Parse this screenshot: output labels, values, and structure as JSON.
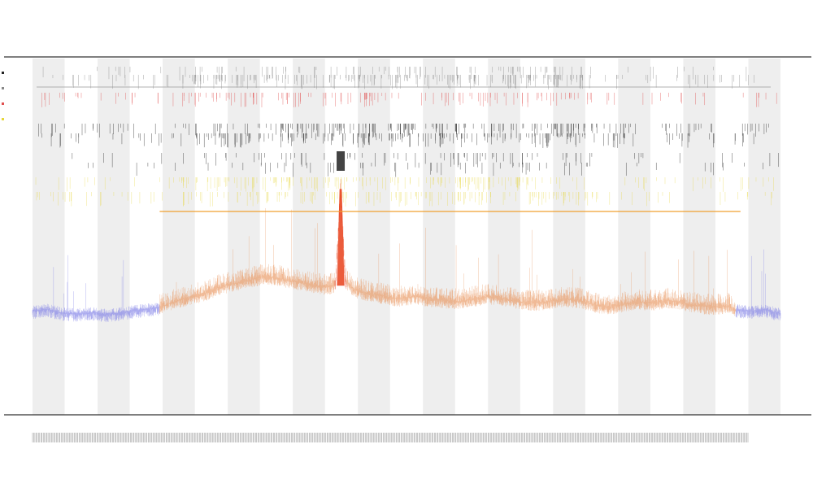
{
  "header": {
    "title": "",
    "subtitle_1": "",
    "subtitle_2": ""
  },
  "chart_data": {
    "type": "line",
    "title": "",
    "xlabel": "",
    "ylabel": "",
    "grid": false,
    "legend_placement": "top-left",
    "colors": {
      "band": "#eeeeee",
      "low_signal": "#7b7be6",
      "mid_signal": "#e8935a",
      "high_signal": "#e8401a",
      "hline": "#f0a030",
      "raster_gray": "#888888",
      "raster_red": "#e05050",
      "raster_black": "#222222",
      "raster_yellow": "#e6d63a",
      "axis": "#333333"
    },
    "legend": [
      {
        "label": "",
        "color": "#222222"
      },
      {
        "label": "",
        "color": "#888888"
      },
      {
        "label": "",
        "color": "#e05050"
      },
      {
        "label": "",
        "color": "#e6d63a"
      }
    ],
    "profile": {
      "x_range": [
        0,
        100
      ],
      "y_range": [
        0,
        100
      ],
      "signal_points": [
        [
          0,
          26.5
        ],
        [
          2,
          27.2
        ],
        [
          4,
          25.8
        ],
        [
          6,
          25.5
        ],
        [
          8,
          26.0
        ],
        [
          10,
          25.2
        ],
        [
          12,
          26.0
        ],
        [
          14,
          26.8
        ],
        [
          16,
          27.5
        ],
        [
          17,
          28.0
        ],
        [
          19,
          30.0
        ],
        [
          21,
          31.5
        ],
        [
          23,
          33.0
        ],
        [
          25,
          35.5
        ],
        [
          27,
          36.8
        ],
        [
          29,
          38.0
        ],
        [
          31,
          39.5
        ],
        [
          33,
          38.8
        ],
        [
          35,
          37.5
        ],
        [
          37,
          36.5
        ],
        [
          39,
          35.5
        ],
        [
          40.5,
          36.0
        ],
        [
          41.2,
          72.0
        ],
        [
          41.8,
          38.0
        ],
        [
          43,
          34.5
        ],
        [
          45,
          33.0
        ],
        [
          47,
          32.0
        ],
        [
          49,
          31.0
        ],
        [
          51,
          32.0
        ],
        [
          53,
          31.0
        ],
        [
          55,
          30.5
        ],
        [
          57,
          30.0
        ],
        [
          59,
          31.0
        ],
        [
          61,
          32.0
        ],
        [
          63,
          31.0
        ],
        [
          65,
          30.0
        ],
        [
          67,
          29.5
        ],
        [
          69,
          30.0
        ],
        [
          71,
          31.0
        ],
        [
          73,
          30.5
        ],
        [
          75,
          29.0
        ],
        [
          77,
          28.0
        ],
        [
          79,
          29.0
        ],
        [
          81,
          30.0
        ],
        [
          83,
          29.5
        ],
        [
          85,
          30.5
        ],
        [
          87,
          29.5
        ],
        [
          89,
          28.5
        ],
        [
          91,
          28.0
        ],
        [
          93,
          28.5
        ],
        [
          94,
          27.0
        ],
        [
          96,
          26.5
        ],
        [
          98,
          27.0
        ],
        [
          100,
          25.5
        ]
      ],
      "low_segments": [
        [
          0,
          17
        ],
        [
          94,
          100
        ]
      ],
      "peak_x": 41.2,
      "reference_line": {
        "y": 58.0,
        "x_from": 17,
        "x_to": 99
      }
    },
    "bands": [
      [
        0,
        4.3
      ],
      [
        8.7,
        13
      ],
      [
        17.4,
        21.7
      ],
      [
        26.1,
        30.4
      ],
      [
        34.8,
        39.1
      ],
      [
        43.5,
        47.8
      ],
      [
        52.2,
        56.5
      ],
      [
        60.9,
        65.2
      ],
      [
        69.6,
        73.9
      ],
      [
        78.3,
        82.6
      ],
      [
        87,
        91.3
      ],
      [
        95.7,
        100
      ]
    ],
    "raster_tracks": [
      {
        "name": "",
        "color": "#888888",
        "density": 0.25
      },
      {
        "name": "",
        "color": "#888888",
        "density": 0.6
      },
      {
        "name": "",
        "color": "#e05050",
        "density": 0.4
      },
      {
        "name": "",
        "color": "#222222",
        "density": 0.55
      },
      {
        "name": "",
        "color": "#222222",
        "density": 0.5
      },
      {
        "name": "",
        "color": "#222222",
        "density": 0.2
      },
      {
        "name": "",
        "color": "#222222",
        "density": 0.15
      },
      {
        "name": "",
        "color": "#e6d63a",
        "density": 0.5
      },
      {
        "name": "",
        "color": "#e6d63a",
        "density": 0.45
      }
    ]
  }
}
